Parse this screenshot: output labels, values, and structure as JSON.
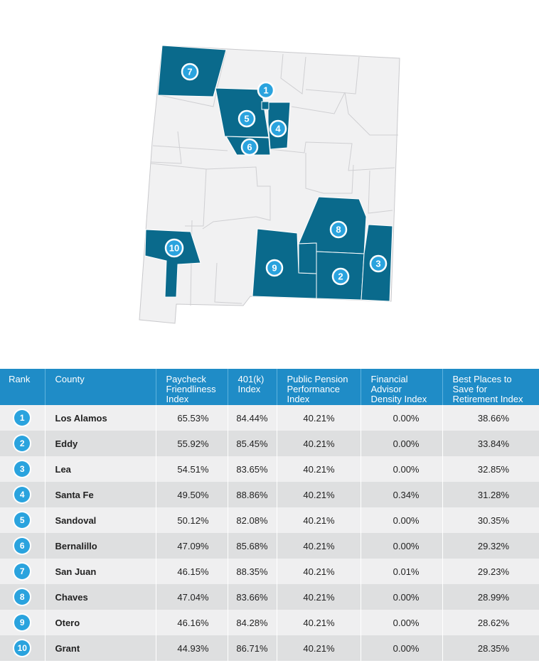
{
  "colors": {
    "highlight_county": "#0a6a8c",
    "base_county": "#f1f1f2",
    "county_border": "#c9c9cc",
    "badge": "#2aa3de",
    "header_bg": "#1f8cc7",
    "row_light": "#efeff0",
    "row_dark": "#dedfe0"
  },
  "map": {
    "badges": [
      {
        "rank": "7"
      },
      {
        "rank": "1"
      },
      {
        "rank": "5"
      },
      {
        "rank": "4"
      },
      {
        "rank": "6"
      },
      {
        "rank": "8"
      },
      {
        "rank": "10"
      },
      {
        "rank": "9"
      },
      {
        "rank": "2"
      },
      {
        "rank": "3"
      }
    ]
  },
  "table": {
    "headers": {
      "rank": "Rank",
      "county": "County",
      "paycheck_1": "Paycheck",
      "paycheck_2": "Friendliness",
      "paycheck_3": "Index",
      "k401_1": "401(k)",
      "k401_2": "Index",
      "pension_1": "Public Pension",
      "pension_2": "Performance",
      "pension_3": "Index",
      "advisor_1": "Financial",
      "advisor_2": "Advisor",
      "advisor_3": "Density Index",
      "best_1": "Best Places to",
      "best_2": "Save for",
      "best_3": "Retirement Index"
    },
    "rows": [
      {
        "rank": "1",
        "county": "Los Alamos",
        "paycheck": "65.53%",
        "k401": "84.44%",
        "pension": "40.21%",
        "advisor": "0.00%",
        "best": "38.66%"
      },
      {
        "rank": "2",
        "county": "Eddy",
        "paycheck": "55.92%",
        "k401": "85.45%",
        "pension": "40.21%",
        "advisor": "0.00%",
        "best": "33.84%"
      },
      {
        "rank": "3",
        "county": "Lea",
        "paycheck": "54.51%",
        "k401": "83.65%",
        "pension": "40.21%",
        "advisor": "0.00%",
        "best": "32.85%"
      },
      {
        "rank": "4",
        "county": "Santa Fe",
        "paycheck": "49.50%",
        "k401": "88.86%",
        "pension": "40.21%",
        "advisor": "0.34%",
        "best": "31.28%"
      },
      {
        "rank": "5",
        "county": "Sandoval",
        "paycheck": "50.12%",
        "k401": "82.08%",
        "pension": "40.21%",
        "advisor": "0.00%",
        "best": "30.35%"
      },
      {
        "rank": "6",
        "county": "Bernalillo",
        "paycheck": "47.09%",
        "k401": "85.68%",
        "pension": "40.21%",
        "advisor": "0.00%",
        "best": "29.32%"
      },
      {
        "rank": "7",
        "county": "San Juan",
        "paycheck": "46.15%",
        "k401": "88.35%",
        "pension": "40.21%",
        "advisor": "0.01%",
        "best": "29.23%"
      },
      {
        "rank": "8",
        "county": "Chaves",
        "paycheck": "47.04%",
        "k401": "83.66%",
        "pension": "40.21%",
        "advisor": "0.00%",
        "best": "28.99%"
      },
      {
        "rank": "9",
        "county": "Otero",
        "paycheck": "46.16%",
        "k401": "84.28%",
        "pension": "40.21%",
        "advisor": "0.00%",
        "best": "28.62%"
      },
      {
        "rank": "10",
        "county": "Grant",
        "paycheck": "44.93%",
        "k401": "86.71%",
        "pension": "40.21%",
        "advisor": "0.00%",
        "best": "28.35%"
      }
    ]
  }
}
